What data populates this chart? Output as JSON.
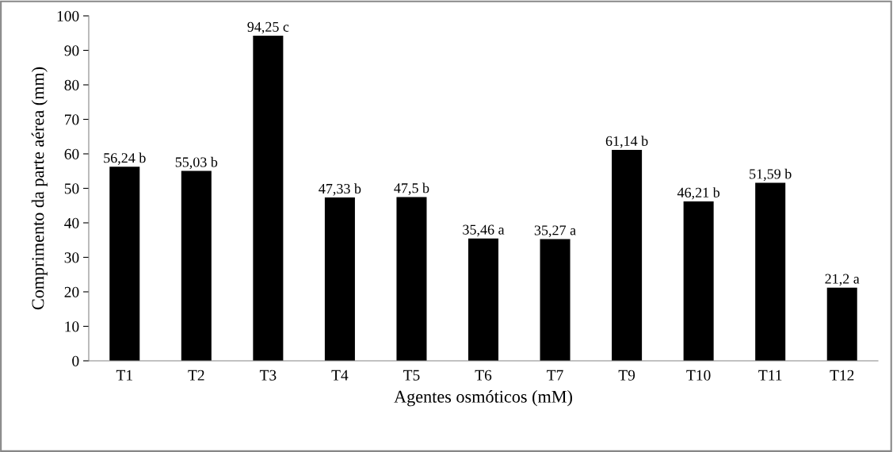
{
  "chart_data": {
    "type": "bar",
    "xlabel": "Agentes osmóticos (mM)",
    "ylabel": "Comprimento da parte aérea (mm)",
    "categories": [
      "T1",
      "T2",
      "T3",
      "T4",
      "T5",
      "T6",
      "T7",
      "T9",
      "T10",
      "T11",
      "T12"
    ],
    "values": [
      56.24,
      55.03,
      94.25,
      47.33,
      47.5,
      35.46,
      35.27,
      61.14,
      46.21,
      51.59,
      21.2
    ],
    "value_labels": [
      "56,24 b",
      "55,03 b",
      "94,25 c",
      "47,33 b",
      "47,5 b",
      "35,46 a",
      "35,27 a",
      "61,14 b",
      "46,21 b",
      "51,59 b",
      "21,2 a"
    ],
    "color": "#000000",
    "ylim": [
      0,
      100
    ],
    "yticks": [
      0,
      10,
      20,
      30,
      40,
      50,
      60,
      70,
      80,
      90,
      100
    ],
    "grid": false
  }
}
